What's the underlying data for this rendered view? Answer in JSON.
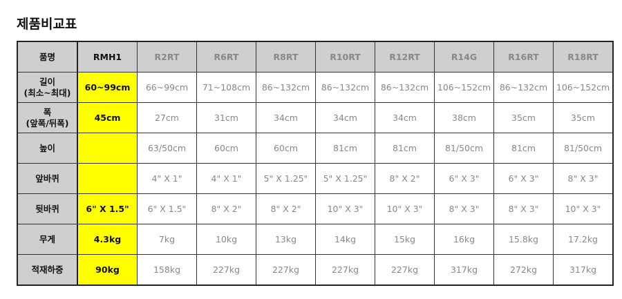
{
  "title": "제품비교표",
  "columns": [
    "품명",
    "RMH1",
    "R2RT",
    "R6RT",
    "R8RT",
    "R10RT",
    "R12RT",
    "R14G",
    "R16RT",
    "R18RT"
  ],
  "highlight_color": "#ffff00",
  "rows": [
    {
      "label": [
        "길이",
        "(최소~최대)"
      ],
      "values": [
        "60~99cm",
        "66~99cm",
        "71~108cm",
        "86~132cm",
        "86~132cm",
        "86~132cm",
        "106~152cm",
        "86~132cm",
        "106~152cm"
      ]
    },
    {
      "label": [
        "폭",
        "(앞폭/뒤폭)"
      ],
      "values": [
        "45cm",
        "27cm",
        "31cm",
        "34cm",
        "34cm",
        "34cm",
        "38cm",
        "35cm",
        "35cm"
      ]
    },
    {
      "label": [
        "높이"
      ],
      "values": [
        "",
        "63/50cm",
        "60cm",
        "60cm",
        "81cm",
        "81cm",
        "81/50cm",
        "81cm",
        "81/50cm"
      ]
    },
    {
      "label": [
        "앞바퀴"
      ],
      "values": [
        "",
        "4\" X 1\"",
        "4\" X 1\"",
        "5\" X 1.25\"",
        "5\" X 1.25\"",
        "8\" X 2\"",
        "6\" X 3\"",
        "6\" X 3\"",
        "8\" X 3\""
      ]
    },
    {
      "label": [
        "뒷바퀴"
      ],
      "values": [
        "6\" X 1.5\"",
        "6\" X 1.5\"",
        "8\" X 2\"",
        "8\" X 2\"",
        "10\" X 3\"",
        "10\" X 3\"",
        "8\" X 3\"",
        "8\" X 3\"",
        "10\" X 3\""
      ]
    },
    {
      "label": [
        "무게"
      ],
      "values": [
        "4.3kg",
        "7kg",
        "10kg",
        "13kg",
        "14kg",
        "15kg",
        "16kg",
        "15.8kg",
        "17.2kg"
      ]
    },
    {
      "label": [
        "적재하중"
      ],
      "values": [
        "90kg",
        "158kg",
        "227kg",
        "227kg",
        "227kg",
        "227kg",
        "317kg",
        "272kg",
        "317kg"
      ]
    }
  ]
}
